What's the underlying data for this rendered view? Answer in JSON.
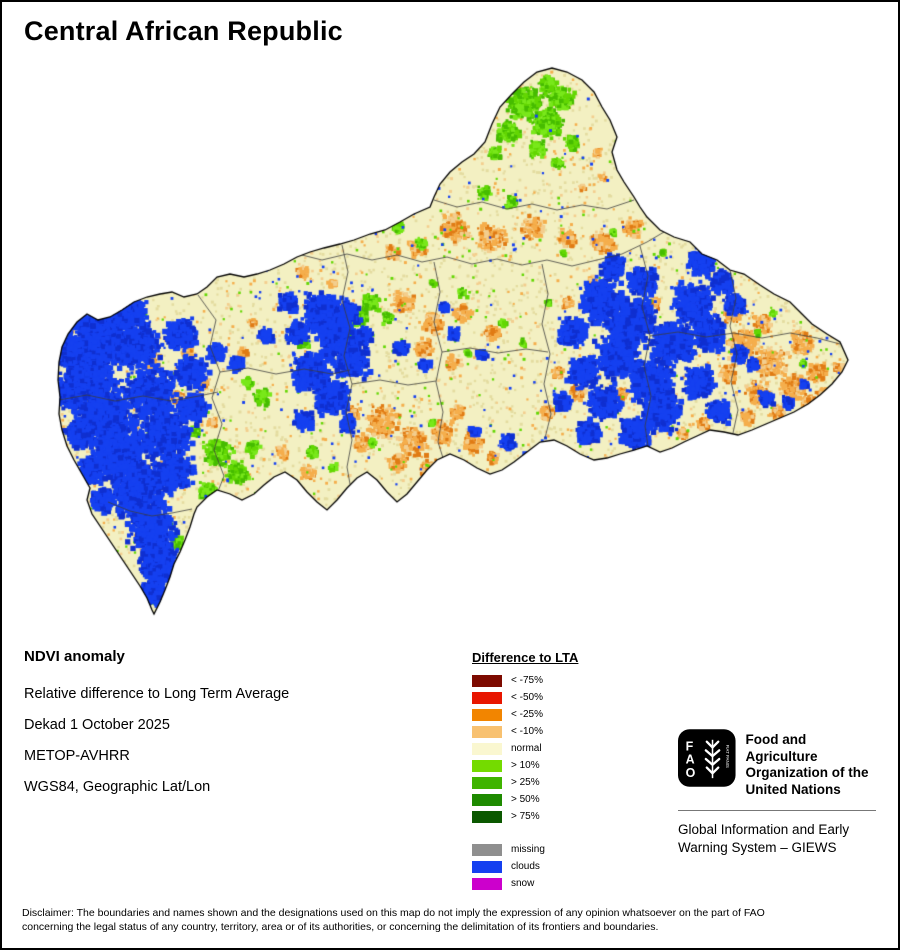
{
  "page": {
    "title": "Central African Republic"
  },
  "info": {
    "heading": "NDVI anomaly",
    "lines": [
      "Relative difference to Long Term Average",
      "Dekad 1 October 2025",
      "METOP-AVHRR",
      "WGS84, Geographic Lat/Lon"
    ]
  },
  "legend": {
    "title": "Difference to LTA",
    "items": [
      {
        "label": "< -75%",
        "color": "#7D0A00"
      },
      {
        "label": "< -50%",
        "color": "#E81600"
      },
      {
        "label": "< -25%",
        "color": "#F28500"
      },
      {
        "label": "< -10%",
        "color": "#F8C170"
      },
      {
        "label": "normal",
        "color": "#FAF7D0"
      },
      {
        "label": "> 10%",
        "color": "#74DB00"
      },
      {
        "label": "> 25%",
        "color": "#3FB400"
      },
      {
        "label": "> 50%",
        "color": "#1E8A00"
      },
      {
        "label": "> 75%",
        "color": "#0B5800"
      }
    ],
    "extra_items": [
      {
        "label": "missing",
        "color": "#8F8F8F"
      },
      {
        "label": "clouds",
        "color": "#1540F0"
      },
      {
        "label": "snow",
        "color": "#CC00CC"
      }
    ]
  },
  "branding": {
    "logo_letters": [
      "F",
      "A",
      "O"
    ],
    "logo_motto": "FIAT PANIS",
    "org_lines": [
      "Food and Agriculture",
      "Organization of the",
      "United Nations"
    ],
    "giews_lines": [
      "Global Information and Early",
      "Warning System – GIEWS"
    ]
  },
  "disclaimer_lines": [
    "Disclaimer: The boundaries and names shown and the designations used on this map do not imply the expression of any opinion whatsoever on the part of FAO",
    "concerning the legal status of any country, territory, area or of its authorities, or concerning the delimitation of its frontiers and boundaries."
  ],
  "map_colors": {
    "base": "#F3F0C2",
    "speck_tan": "#E4DCA0",
    "orange_light": "#F5AE4C",
    "orange_dark": "#E07B14",
    "orange_pale": "#F3CE8E",
    "green_bright": "#63D703",
    "green_mid": "#46BC00",
    "green_light": "#79E81A",
    "clouds": "#1540F0",
    "clouds_dark": "#0F2FD0",
    "boundary": "#3C3C3C",
    "outline": "#000000"
  }
}
